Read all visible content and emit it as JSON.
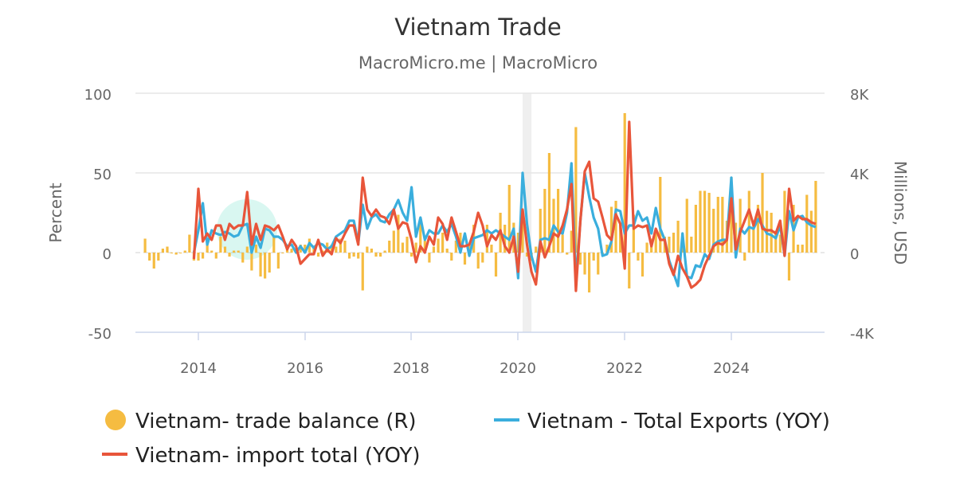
{
  "chart_data": {
    "type": "bar+line",
    "title": "Vietnam Trade",
    "subtitle": "MacroMicro.me | MacroMicro",
    "ylabel_left": "Percent",
    "ylabel_right": "Millions, USD",
    "ylim_left": [
      -50,
      100
    ],
    "ylim_right": [
      -4000,
      8000
    ],
    "yticks_left": [
      "100",
      "50",
      "0",
      "-50"
    ],
    "yticks_right": [
      "8K",
      "4K",
      "0",
      "-4K"
    ],
    "xticks": [
      "2014",
      "2016",
      "2018",
      "2020",
      "2022",
      "2024"
    ],
    "grid": true,
    "shaded_period": [
      "2020-02",
      "2020-04"
    ],
    "legend_placement": "bottom",
    "colors": {
      "balance": "#F5BC41",
      "exports": "#3AAEDD",
      "imports": "#E8553A",
      "shade": "#EFEFEF"
    },
    "series": [
      {
        "name": "Vietnam- trade balance (R)",
        "type": "bar",
        "axis": "right",
        "start": "2013-01",
        "values": [
          700,
          -400,
          -800,
          -400,
          200,
          300,
          0,
          -100,
          0,
          100,
          900,
          -400,
          -400,
          -300,
          600,
          100,
          -300,
          800,
          300,
          -200,
          100,
          100,
          -500,
          300,
          -900,
          400,
          -1200,
          -1300,
          -1000,
          800,
          -800,
          0,
          300,
          200,
          100,
          400,
          400,
          700,
          300,
          -200,
          100,
          500,
          400,
          300,
          700,
          600,
          -300,
          -200,
          -300,
          -1900,
          300,
          200,
          -200,
          -200,
          100,
          600,
          1100,
          1900,
          500,
          800,
          -200,
          500,
          1600,
          600,
          -500,
          300,
          700,
          1000,
          200,
          -400,
          600,
          1000,
          -600,
          400,
          1400,
          -800,
          -500,
          1400,
          400,
          -1200,
          2000,
          1400,
          3400,
          1500,
          1000,
          2000,
          -200,
          -400,
          300,
          2200,
          3200,
          5000,
          2700,
          3200,
          900,
          -100,
          1100,
          6300,
          -600,
          -1100,
          -2000,
          -400,
          -1100,
          -100,
          400,
          2300,
          2600,
          1500,
          7000,
          -1800,
          1900,
          -400,
          -1200,
          500,
          700,
          1000,
          3800,
          800,
          800,
          1000,
          1600,
          600,
          2700,
          800,
          2400,
          3100,
          3100,
          3000,
          2200,
          2800,
          2800,
          1600,
          3800,
          1500,
          2700,
          -400,
          3100,
          1400,
          2400,
          4000,
          2100,
          2000,
          1100,
          900,
          3100,
          -1400,
          2400,
          400,
          400,
          2900,
          2100,
          3600
        ]
      },
      {
        "name": "Vietnam - Total Exports (YOY)",
        "type": "line",
        "axis": "left",
        "start": "2013-12",
        "values": [
          0,
          14,
          31,
          5,
          14,
          12,
          11,
          13,
          12,
          10,
          11,
          17,
          18,
          0,
          10,
          3,
          15,
          14,
          10,
          10,
          8,
          4,
          5,
          0,
          4,
          0,
          6,
          3,
          6,
          5,
          2,
          4,
          10,
          12,
          14,
          20,
          20,
          6,
          30,
          15,
          22,
          24,
          20,
          19,
          24,
          27,
          33,
          25,
          20,
          41,
          10,
          22,
          8,
          14,
          12,
          12,
          17,
          13,
          18,
          10,
          0,
          12,
          -2,
          9,
          10,
          11,
          14,
          12,
          14,
          12,
          10,
          8,
          15,
          -16,
          50,
          18,
          -2,
          -12,
          8,
          9,
          8,
          17,
          13,
          12,
          25,
          56,
          -18,
          20,
          50,
          35,
          22,
          15,
          -2,
          -1,
          7,
          27,
          26,
          12,
          17,
          17,
          26,
          20,
          22,
          12,
          28,
          15,
          8,
          -5,
          -13,
          -21,
          12,
          -15,
          -16,
          -8,
          -9,
          -1,
          -4,
          5,
          7,
          8,
          8,
          47,
          -3,
          15,
          12,
          16,
          15,
          21,
          17,
          12,
          11,
          9,
          17,
          -2,
          26,
          14,
          22,
          23,
          19,
          17,
          16
        ]
      },
      {
        "name": "Vietnam- import total (YOY)",
        "type": "line",
        "axis": "left",
        "start": "2013-12",
        "values": [
          -4,
          40,
          7,
          12,
          8,
          17,
          17,
          8,
          18,
          15,
          17,
          17,
          38,
          5,
          18,
          8,
          17,
          16,
          14,
          17,
          10,
          2,
          8,
          4,
          -7,
          -4,
          -1,
          -1,
          8,
          -2,
          2,
          -1,
          9,
          6,
          12,
          17,
          17,
          5,
          47,
          27,
          23,
          27,
          23,
          22,
          18,
          27,
          15,
          19,
          18,
          8,
          -6,
          4,
          0,
          10,
          5,
          22,
          18,
          8,
          22,
          13,
          4,
          4,
          5,
          13,
          25,
          17,
          4,
          11,
          8,
          14,
          4,
          0,
          10,
          -12,
          27,
          5,
          -12,
          -20,
          7,
          -3,
          4,
          12,
          10,
          17,
          27,
          43,
          -24,
          20,
          51,
          57,
          34,
          32,
          22,
          11,
          8,
          24,
          18,
          -10,
          82,
          15,
          17,
          16,
          17,
          4,
          15,
          8,
          8,
          -7,
          -14,
          -2,
          -10,
          -15,
          -22,
          -20,
          -17,
          -8,
          -2,
          4,
          6,
          5,
          8,
          34,
          2,
          13,
          20,
          27,
          17,
          27,
          15,
          14,
          14,
          12,
          20,
          -2,
          40,
          20,
          23,
          21,
          21,
          19,
          18
        ]
      }
    ]
  }
}
